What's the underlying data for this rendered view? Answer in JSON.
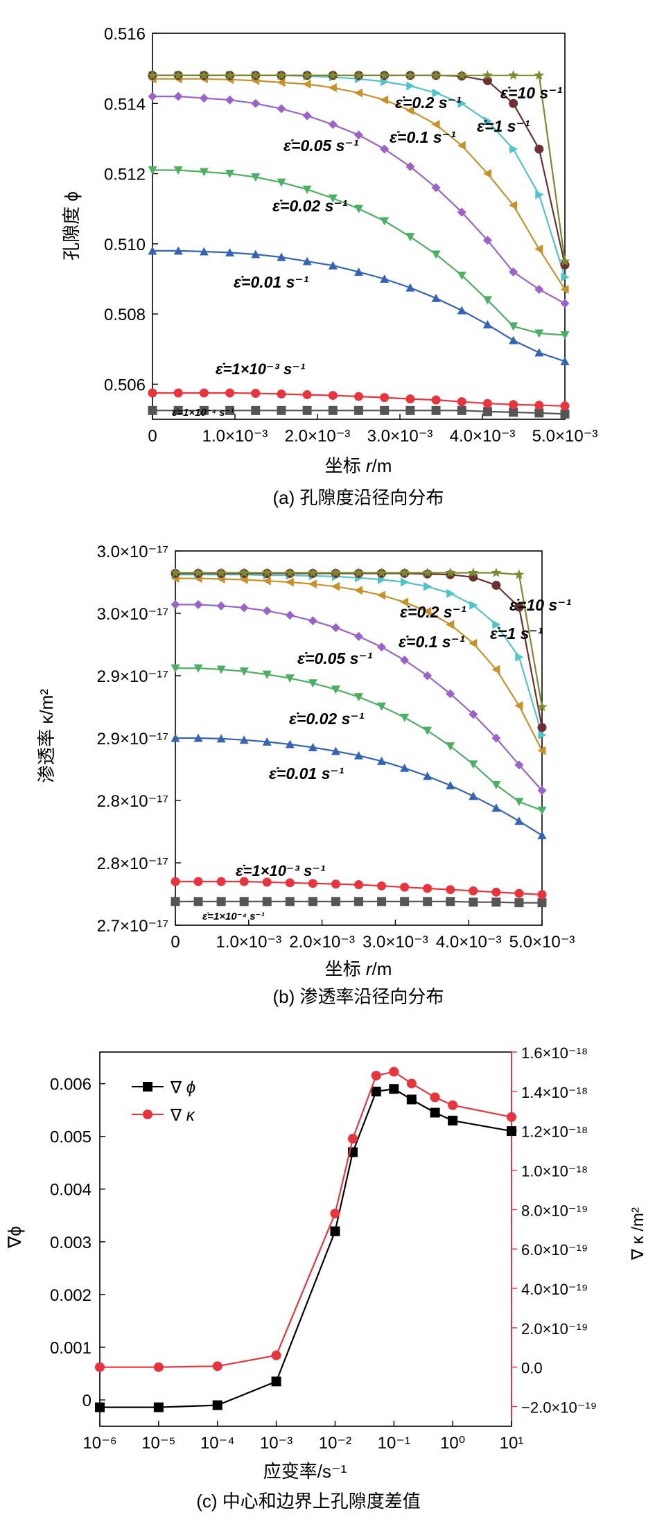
{
  "panels": [
    {
      "id": "a",
      "type": "line",
      "caption": "(a) 孔隙度沿径向分布",
      "ylabel": "孔隙度 ϕ",
      "xlabel_main": "坐标 ",
      "xlabel_var": "r",
      "xlabel_unit": "/m",
      "x": [
        0,
        0.0003125,
        0.000625,
        0.0009375,
        0.00125,
        0.0015625,
        0.001875,
        0.0021875,
        0.0025,
        0.0028125,
        0.003125,
        0.0034375,
        0.00375,
        0.0040625,
        0.004375,
        0.0046875,
        0.005
      ],
      "xlim": [
        0,
        0.005
      ],
      "ylim": [
        0.505,
        0.516
      ],
      "xticks": [
        "0",
        "1.0×10⁻³",
        "2.0×10⁻³",
        "3.0×10⁻³",
        "4.0×10⁻³",
        "5.0×10⁻³"
      ],
      "yticks": [
        "0.506",
        "0.508",
        "0.510",
        "0.512",
        "0.514",
        "0.516"
      ],
      "ytick_values": [
        0.506,
        0.508,
        0.51,
        0.512,
        0.514,
        0.516
      ],
      "series": [
        {
          "name": "ε̇=1×10⁻⁴ s⁻¹",
          "color": "#555555",
          "marker": "square",
          "values": [
            0.50525,
            0.50525,
            0.50525,
            0.50525,
            0.50525,
            0.50525,
            0.50525,
            0.50525,
            0.50525,
            0.50525,
            0.50525,
            0.50525,
            0.50525,
            0.50522,
            0.5052,
            0.50518,
            0.50515
          ]
        },
        {
          "name": "ε̇=1×10⁻³ s⁻¹",
          "color": "#e8343c",
          "marker": "circle",
          "values": [
            0.50575,
            0.50575,
            0.50575,
            0.50575,
            0.50574,
            0.50572,
            0.5057,
            0.50568,
            0.50565,
            0.50562,
            0.50558,
            0.50555,
            0.5055,
            0.50545,
            0.50542,
            0.5054,
            0.50538
          ]
        },
        {
          "name": "ε̇=0.01 s⁻¹",
          "color": "#3464b4",
          "marker": "triangle-up",
          "values": [
            0.5098,
            0.5098,
            0.50978,
            0.50975,
            0.5097,
            0.50962,
            0.5095,
            0.50938,
            0.5092,
            0.509,
            0.50875,
            0.50845,
            0.5081,
            0.5077,
            0.50725,
            0.5069,
            0.50665
          ]
        },
        {
          "name": "ε̇=0.02 s⁻¹",
          "color": "#4caf62",
          "marker": "triangle-down",
          "values": [
            0.5121,
            0.5121,
            0.51205,
            0.512,
            0.5119,
            0.51175,
            0.51155,
            0.5113,
            0.511,
            0.51065,
            0.5102,
            0.5097,
            0.5091,
            0.5084,
            0.50765,
            0.50745,
            0.5074
          ]
        },
        {
          "name": "ε̇=0.05 s⁻¹",
          "color": "#9b62c8",
          "marker": "diamond",
          "values": [
            0.5142,
            0.5142,
            0.51415,
            0.5141,
            0.514,
            0.51385,
            0.51365,
            0.5134,
            0.5131,
            0.5127,
            0.5122,
            0.5116,
            0.5109,
            0.5101,
            0.5092,
            0.5087,
            0.5083
          ]
        },
        {
          "name": "ε̇=0.1 s⁻¹",
          "color": "#c8922a",
          "marker": "triangle-left",
          "values": [
            0.5147,
            0.5147,
            0.5147,
            0.51468,
            0.51465,
            0.5146,
            0.51455,
            0.51445,
            0.5143,
            0.5141,
            0.5138,
            0.5134,
            0.5128,
            0.512,
            0.5111,
            0.50985,
            0.5087
          ]
        },
        {
          "name": "ε̇=0.2 s⁻¹",
          "color": "#4fc4c9",
          "marker": "triangle-right",
          "values": [
            0.5148,
            0.5148,
            0.5148,
            0.5148,
            0.5148,
            0.5148,
            0.51478,
            0.51475,
            0.5147,
            0.51462,
            0.5145,
            0.5143,
            0.514,
            0.5135,
            0.5127,
            0.5114,
            0.50905
          ]
        },
        {
          "name": "ε̇=1 s⁻¹",
          "color": "#6b3030",
          "marker": "circle",
          "values": [
            0.5148,
            0.5148,
            0.5148,
            0.5148,
            0.5148,
            0.5148,
            0.5148,
            0.5148,
            0.5148,
            0.5148,
            0.5148,
            0.5148,
            0.51478,
            0.51465,
            0.514,
            0.5127,
            0.5094
          ]
        },
        {
          "name": "ε̇=10 s⁻¹",
          "color": "#7a8a2c",
          "marker": "star",
          "values": [
            0.5148,
            0.5148,
            0.5148,
            0.5148,
            0.5148,
            0.5148,
            0.5148,
            0.5148,
            0.5148,
            0.5148,
            0.5148,
            0.5148,
            0.5148,
            0.5148,
            0.5148,
            0.5148,
            0.5095
          ]
        }
      ]
    },
    {
      "id": "b",
      "type": "line",
      "caption": "(b) 渗透率沿径向分布",
      "ylabel": "渗透率 κ/m²",
      "xlabel_main": "坐标 ",
      "xlabel_var": "r",
      "xlabel_unit": "/m",
      "x": [
        0,
        0.0003125,
        0.000625,
        0.0009375,
        0.00125,
        0.0015625,
        0.001875,
        0.0021875,
        0.0025,
        0.0028125,
        0.003125,
        0.0034375,
        0.00375,
        0.0040625,
        0.004375,
        0.0046875,
        0.005
      ],
      "xlim": [
        0,
        0.005
      ],
      "ylim": [
        0,
        6
      ],
      "xticks": [
        "0",
        "1.0×10⁻³",
        "2.0×10⁻³",
        "3.0×10⁻³",
        "4.0×10⁻³",
        "5.0×10⁻³"
      ],
      "yticks": [
        "2.7×10⁻¹⁷",
        "2.8×10⁻¹⁷",
        "2.8×10⁻¹⁷",
        "2.9×10⁻¹⁷",
        "2.9×10⁻¹⁷",
        "3.0×10⁻¹⁷",
        "3.0×10⁻¹⁷"
      ],
      "ytick_values": [
        0,
        1,
        2,
        3,
        4,
        5,
        6
      ],
      "series": [
        {
          "name": "ε̇=1×10⁻⁴ s⁻¹",
          "color": "#555555",
          "marker": "square",
          "values": [
            0.38,
            0.38,
            0.38,
            0.38,
            0.38,
            0.38,
            0.38,
            0.38,
            0.38,
            0.38,
            0.38,
            0.38,
            0.38,
            0.37,
            0.37,
            0.36,
            0.36
          ]
        },
        {
          "name": "ε̇=1×10⁻³ s⁻¹",
          "color": "#e8343c",
          "marker": "circle",
          "values": [
            0.7,
            0.7,
            0.7,
            0.7,
            0.69,
            0.68,
            0.67,
            0.66,
            0.65,
            0.63,
            0.61,
            0.59,
            0.57,
            0.55,
            0.53,
            0.51,
            0.49
          ]
        },
        {
          "name": "ε̇=0.01 s⁻¹",
          "color": "#3464b4",
          "marker": "triangle-up",
          "values": [
            3.0,
            3.0,
            2.99,
            2.97,
            2.94,
            2.9,
            2.85,
            2.79,
            2.72,
            2.63,
            2.52,
            2.39,
            2.24,
            2.07,
            1.88,
            1.67,
            1.44
          ]
        },
        {
          "name": "ε̇=0.02 s⁻¹",
          "color": "#4caf62",
          "marker": "triangle-down",
          "values": [
            4.12,
            4.12,
            4.1,
            4.07,
            4.02,
            3.96,
            3.88,
            3.78,
            3.66,
            3.51,
            3.33,
            3.12,
            2.87,
            2.58,
            2.25,
            1.98,
            1.84
          ]
        },
        {
          "name": "ε̇=0.05 s⁻¹",
          "color": "#9b62c8",
          "marker": "diamond",
          "values": [
            5.14,
            5.14,
            5.12,
            5.09,
            5.04,
            4.97,
            4.88,
            4.77,
            4.63,
            4.46,
            4.25,
            4.0,
            3.71,
            3.38,
            3.0,
            2.57,
            2.16
          ]
        },
        {
          "name": "ε̇=0.1 s⁻¹",
          "color": "#c8922a",
          "marker": "triangle-left",
          "values": [
            5.56,
            5.56,
            5.55,
            5.54,
            5.52,
            5.5,
            5.47,
            5.43,
            5.37,
            5.29,
            5.18,
            5.03,
            4.82,
            4.52,
            4.1,
            3.52,
            2.8
          ]
        },
        {
          "name": "ε̇=0.2 s⁻¹",
          "color": "#4fc4c9",
          "marker": "triangle-right",
          "values": [
            5.62,
            5.62,
            5.62,
            5.62,
            5.61,
            5.61,
            5.6,
            5.59,
            5.57,
            5.54,
            5.5,
            5.43,
            5.32,
            5.13,
            4.82,
            4.3,
            3.05
          ]
        },
        {
          "name": "ε̇=1 s⁻¹",
          "color": "#6b3030",
          "marker": "circle",
          "values": [
            5.64,
            5.64,
            5.64,
            5.64,
            5.64,
            5.64,
            5.64,
            5.64,
            5.64,
            5.64,
            5.64,
            5.63,
            5.62,
            5.58,
            5.45,
            5.1,
            3.17
          ]
        },
        {
          "name": "ε̇=10 s⁻¹",
          "color": "#7a8a2c",
          "marker": "star",
          "values": [
            5.65,
            5.65,
            5.65,
            5.65,
            5.65,
            5.65,
            5.65,
            5.65,
            5.65,
            5.65,
            5.65,
            5.65,
            5.65,
            5.65,
            5.65,
            5.62,
            3.5
          ]
        }
      ]
    },
    {
      "id": "c",
      "type": "line",
      "caption": "(c) 中心和边界上孔隙度差值",
      "ylabel": "∇ϕ",
      "y2label": "∇ κ /m²",
      "xlabel": "应变率/s⁻¹",
      "xscale": "log",
      "xlim_exp": [
        -6,
        1
      ],
      "x_exp": [
        -6,
        -5,
        -4,
        -3,
        -2,
        -1.699,
        -1.301,
        -1,
        -0.699,
        -0.301,
        0,
        1
      ],
      "ylim": [
        -0.0005,
        0.0066
      ],
      "y2lim": [
        -3e-19,
        1.6e-18
      ],
      "xticks": [
        "10⁻⁶",
        "10⁻⁵",
        "10⁻⁴",
        "10⁻³",
        "10⁻²",
        "10⁻¹",
        "10⁰",
        "10¹"
      ],
      "xtick_exp": [
        -6,
        -5,
        -4,
        -3,
        -2,
        -1,
        0,
        1
      ],
      "yticks": [
        "0",
        "0.001",
        "0.002",
        "0.003",
        "0.004",
        "0.005",
        "0.006"
      ],
      "ytick_values": [
        0,
        0.001,
        0.002,
        0.003,
        0.004,
        0.005,
        0.006
      ],
      "y2ticks": [
        "−2.0×10⁻¹⁹",
        "0.0",
        "2.0×10⁻¹⁹",
        "4.0×10⁻¹⁹",
        "6.0×10⁻¹⁹",
        "8.0×10⁻¹⁹",
        "1.0×10⁻¹⁸",
        "1.2×10⁻¹⁸",
        "1.4×10⁻¹⁸",
        "1.6×10⁻¹⁸"
      ],
      "y2tick_values": [
        -2e-19,
        0,
        2e-19,
        4e-19,
        6e-19,
        8e-19,
        1e-18,
        1.2e-18,
        1.4e-18,
        1.6e-18
      ],
      "legend_position": "top-left",
      "series": [
        {
          "name": "∇ ϕ",
          "axis": "left",
          "color": "#000000",
          "marker": "square",
          "values": [
            -0.00014,
            -0.00014,
            -0.0001,
            0.00035,
            0.0032,
            0.0047,
            0.00585,
            0.0059,
            0.0057,
            0.00545,
            0.0053,
            0.0051
          ]
        },
        {
          "name": "∇ κ",
          "axis": "right",
          "color": "#e8343c",
          "marker": "circle",
          "values": [
            0.0,
            0.0,
            5e-21,
            6e-20,
            7.8e-19,
            1.16e-18,
            1.48e-18,
            1.5e-18,
            1.44e-18,
            1.37e-18,
            1.33e-18,
            1.27e-18
          ]
        }
      ]
    }
  ],
  "labels_a": {
    "l1": "ε̇=10 s⁻¹",
    "l2": "ε̇=0.2 s⁻¹",
    "l3": "ε̇=1 s⁻¹",
    "l4": "ε̇=0.1 s⁻¹",
    "l5": "ε̇=0.05 s⁻¹",
    "l6": "ε̇=0.02 s⁻¹",
    "l7": "ε̇=0.01 s⁻¹",
    "l8": "ε̇=1×10⁻³ s⁻¹",
    "l9": "ε̇=1×10⁻⁴ s⁻¹"
  },
  "labels_b": {
    "l1": "ε̇=10 s⁻¹",
    "l2": "ε̇=0.2 s⁻¹",
    "l3": "ε̇=1 s⁻¹",
    "l4": "ε̇=0.1 s⁻¹",
    "l5": "ε̇=0.05 s⁻¹",
    "l6": "ε̇=0.02 s⁻¹",
    "l7": "ε̇=0.01 s⁻¹",
    "l8": "ε̇=1×10⁻³ s⁻¹",
    "l9": "ε̇=1×10⁻⁴ s⁻¹"
  }
}
